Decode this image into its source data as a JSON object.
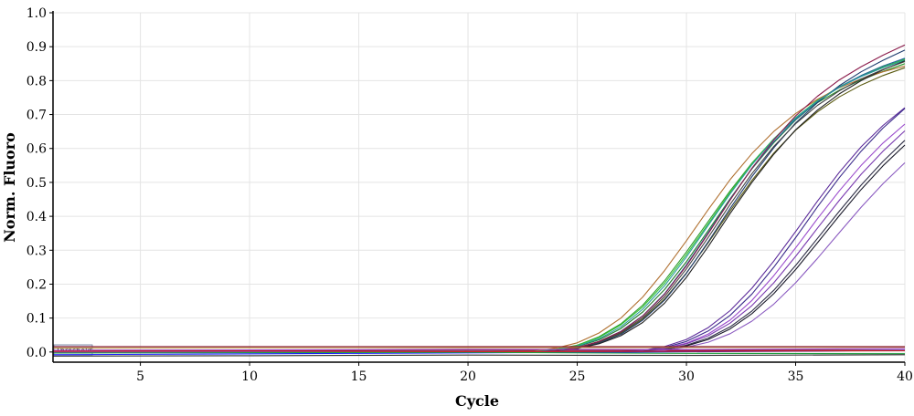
{
  "chart_data": {
    "type": "line",
    "xlabel": "Cycle",
    "ylabel": "Norm. Fluoro",
    "xlim": [
      1,
      40
    ],
    "ylim": [
      -0.03,
      1.0
    ],
    "x_ticks": [
      5,
      10,
      15,
      20,
      25,
      30,
      35,
      40
    ],
    "y_ticks": [
      0.0,
      0.1,
      0.2,
      0.3,
      0.4,
      0.5,
      0.6,
      0.7,
      0.8,
      0.9,
      1.0
    ],
    "y_tick_labels": [
      "0.0",
      "0.1",
      "0.2",
      "0.3",
      "0.4",
      "0.5",
      "0.6",
      "0.7",
      "0.8",
      "0.9",
      "1.0"
    ],
    "grid": true,
    "legend": "none",
    "threshold": {
      "label": "Threshold",
      "y": 0.005,
      "color": "#7a1a3a"
    },
    "series": [
      {
        "color": "#2e9a2e",
        "x": [
          1,
          20,
          23,
          24,
          25,
          26,
          27,
          28,
          29,
          30,
          31,
          32,
          33,
          34,
          35,
          36,
          37,
          38,
          39,
          40
        ],
        "values": [
          0,
          0,
          0.001,
          0.008,
          0.02,
          0.045,
          0.083,
          0.138,
          0.21,
          0.295,
          0.385,
          0.475,
          0.557,
          0.628,
          0.688,
          0.735,
          0.772,
          0.802,
          0.827,
          0.85
        ]
      },
      {
        "color": "#1f7a2a",
        "x": [
          1,
          20,
          23,
          24,
          25,
          26,
          27,
          28,
          29,
          30,
          31,
          32,
          33,
          34,
          35,
          36,
          37,
          38,
          39,
          40
        ],
        "values": [
          0,
          0,
          0,
          0.005,
          0.016,
          0.036,
          0.069,
          0.118,
          0.184,
          0.266,
          0.358,
          0.452,
          0.54,
          0.617,
          0.684,
          0.738,
          0.781,
          0.815,
          0.843,
          0.865
        ]
      },
      {
        "color": "#35c335",
        "x": [
          1,
          20,
          23,
          24,
          25,
          26,
          27,
          28,
          29,
          30,
          31,
          32,
          33,
          34,
          35,
          36,
          37,
          38,
          39,
          40
        ],
        "values": [
          0,
          0,
          0.001,
          0.007,
          0.019,
          0.043,
          0.08,
          0.133,
          0.203,
          0.287,
          0.378,
          0.47,
          0.555,
          0.628,
          0.691,
          0.742,
          0.782,
          0.814,
          0.84,
          0.862
        ]
      },
      {
        "color": "#5a5a10",
        "x": [
          1,
          20,
          23,
          24,
          25,
          26,
          27,
          28,
          29,
          30,
          31,
          32,
          33,
          34,
          35,
          36,
          37,
          38,
          39,
          40
        ],
        "values": [
          0,
          0,
          0,
          0.004,
          0.012,
          0.028,
          0.055,
          0.097,
          0.156,
          0.233,
          0.322,
          0.416,
          0.506,
          0.586,
          0.654,
          0.708,
          0.752,
          0.787,
          0.815,
          0.838
        ]
      },
      {
        "color": "#b07030",
        "x": [
          1,
          20,
          23,
          24,
          25,
          26,
          27,
          28,
          29,
          30,
          31,
          32,
          33,
          34,
          35,
          36,
          37,
          38,
          39,
          40
        ],
        "values": [
          0,
          0,
          0.002,
          0.011,
          0.027,
          0.056,
          0.1,
          0.162,
          0.24,
          0.328,
          0.42,
          0.508,
          0.585,
          0.65,
          0.703,
          0.745,
          0.779,
          0.805,
          0.826,
          0.843
        ]
      },
      {
        "color": "#1e3c6e",
        "x": [
          1,
          20,
          23,
          24,
          25,
          26,
          27,
          28,
          29,
          30,
          31,
          32,
          33,
          34,
          35,
          36,
          37,
          38,
          39,
          40
        ],
        "values": [
          0,
          0,
          0,
          0.003,
          0.011,
          0.026,
          0.052,
          0.094,
          0.153,
          0.232,
          0.325,
          0.423,
          0.517,
          0.602,
          0.675,
          0.735,
          0.785,
          0.826,
          0.86,
          0.89
        ]
      },
      {
        "color": "#2a6aa0",
        "x": [
          1,
          20,
          23,
          24,
          25,
          26,
          27,
          28,
          29,
          30,
          31,
          32,
          33,
          34,
          35,
          36,
          37,
          38,
          39,
          40
        ],
        "values": [
          0,
          0,
          0,
          0.004,
          0.013,
          0.031,
          0.061,
          0.107,
          0.172,
          0.257,
          0.352,
          0.45,
          0.541,
          0.62,
          0.686,
          0.739,
          0.781,
          0.815,
          0.843,
          0.866
        ]
      },
      {
        "color": "#2a9aa0",
        "x": [
          1,
          20,
          23,
          24,
          25,
          26,
          27,
          28,
          29,
          30,
          31,
          32,
          33,
          34,
          35,
          36,
          37,
          38,
          39,
          40
        ],
        "values": [
          0,
          0,
          0.001,
          0.006,
          0.017,
          0.039,
          0.074,
          0.126,
          0.195,
          0.28,
          0.373,
          0.466,
          0.552,
          0.627,
          0.69,
          0.74,
          0.78,
          0.812,
          0.838,
          0.86
        ]
      },
      {
        "color": "#222222",
        "x": [
          1,
          20,
          23,
          24,
          25,
          26,
          27,
          28,
          29,
          30,
          31,
          32,
          33,
          34,
          35,
          36,
          37,
          38,
          39,
          40
        ],
        "values": [
          0,
          0,
          0,
          0.003,
          0.01,
          0.024,
          0.048,
          0.087,
          0.144,
          0.22,
          0.311,
          0.408,
          0.5,
          0.583,
          0.655,
          0.713,
          0.761,
          0.8,
          0.832,
          0.858
        ]
      },
      {
        "color": "#444444",
        "x": [
          1,
          20,
          23,
          24,
          25,
          26,
          27,
          28,
          29,
          30,
          31,
          32,
          33,
          34,
          35,
          36,
          37,
          38,
          39,
          40
        ],
        "values": [
          0,
          0,
          0,
          0.004,
          0.012,
          0.029,
          0.057,
          0.101,
          0.163,
          0.245,
          0.338,
          0.435,
          0.526,
          0.606,
          0.673,
          0.727,
          0.77,
          0.805,
          0.833,
          0.856
        ]
      },
      {
        "color": "#8a1a4a",
        "x": [
          1,
          20,
          23,
          24,
          25,
          26,
          27,
          28,
          29,
          30,
          31,
          32,
          33,
          34,
          35,
          36,
          37,
          38,
          39,
          40
        ],
        "values": [
          0,
          0,
          0,
          0.004,
          0.013,
          0.031,
          0.06,
          0.106,
          0.17,
          0.254,
          0.349,
          0.448,
          0.542,
          0.625,
          0.696,
          0.754,
          0.802,
          0.841,
          0.875,
          0.905
        ]
      },
      {
        "color": "#5b2a9a",
        "x": [
          1,
          27,
          28,
          29,
          30,
          31,
          32,
          33,
          34,
          35,
          36,
          37,
          38,
          39,
          40
        ],
        "values": [
          0,
          0.001,
          0.005,
          0.016,
          0.037,
          0.072,
          0.122,
          0.188,
          0.268,
          0.355,
          0.445,
          0.53,
          0.605,
          0.668,
          0.72
        ]
      },
      {
        "color": "#3a2a8a",
        "x": [
          1,
          27,
          28,
          29,
          30,
          31,
          32,
          33,
          34,
          35,
          36,
          37,
          38,
          39,
          40
        ],
        "values": [
          0,
          0,
          0.004,
          0.013,
          0.031,
          0.062,
          0.108,
          0.171,
          0.25,
          0.337,
          0.428,
          0.514,
          0.592,
          0.66,
          0.718
        ]
      },
      {
        "color": "#9a4acc",
        "x": [
          1,
          27,
          28,
          29,
          30,
          31,
          32,
          33,
          34,
          35,
          36,
          37,
          38,
          39,
          40
        ],
        "values": [
          0,
          0,
          0.003,
          0.011,
          0.026,
          0.053,
          0.094,
          0.152,
          0.225,
          0.307,
          0.393,
          0.475,
          0.55,
          0.616,
          0.672
        ]
      },
      {
        "color": "#7a3ab0",
        "x": [
          1,
          27,
          28,
          29,
          30,
          31,
          32,
          33,
          34,
          35,
          36,
          37,
          38,
          39,
          40
        ],
        "values": [
          0,
          0,
          0.003,
          0.01,
          0.024,
          0.048,
          0.085,
          0.137,
          0.204,
          0.282,
          0.365,
          0.447,
          0.524,
          0.592,
          0.652
        ]
      },
      {
        "color": "#1a1a2a",
        "x": [
          1,
          27,
          28,
          29,
          30,
          31,
          32,
          33,
          34,
          35,
          36,
          37,
          38,
          39,
          40
        ],
        "values": [
          0,
          0,
          0.002,
          0.007,
          0.018,
          0.037,
          0.068,
          0.113,
          0.172,
          0.243,
          0.322,
          0.402,
          0.479,
          0.549,
          0.61
        ]
      },
      {
        "color": "#303048",
        "x": [
          1,
          27,
          28,
          29,
          30,
          31,
          32,
          33,
          34,
          35,
          36,
          37,
          38,
          39,
          40
        ],
        "values": [
          0,
          0,
          0.002,
          0.008,
          0.02,
          0.041,
          0.074,
          0.121,
          0.182,
          0.255,
          0.335,
          0.415,
          0.492,
          0.562,
          0.624
        ]
      },
      {
        "color": "#8a5ac0",
        "x": [
          1,
          27,
          28,
          29,
          30,
          31,
          32,
          33,
          34,
          35,
          36,
          37,
          38,
          39,
          40
        ],
        "values": [
          0,
          0,
          0.001,
          0.005,
          0.014,
          0.029,
          0.054,
          0.091,
          0.141,
          0.204,
          0.276,
          0.352,
          0.427,
          0.496,
          0.558
        ]
      },
      {
        "color": "#b58a3a",
        "x": [
          1,
          40
        ],
        "values": [
          0.012,
          0.014
        ]
      },
      {
        "color": "#8a1a3a",
        "x": [
          1,
          40
        ],
        "values": [
          0.016,
          0.016
        ]
      },
      {
        "color": "#1a1aff",
        "x": [
          1,
          8,
          15,
          22,
          28,
          34,
          40
        ],
        "values": [
          -0.008,
          -0.006,
          -0.004,
          -0.002,
          0.0,
          0.002,
          0.005
        ]
      },
      {
        "color": "#a040c0",
        "x": [
          1,
          10,
          20,
          30,
          40
        ],
        "values": [
          0.005,
          0.006,
          0.008,
          0.007,
          0.01
        ]
      },
      {
        "color": "#20a040",
        "x": [
          1,
          10,
          20,
          30,
          40
        ],
        "values": [
          -0.003,
          -0.002,
          -0.001,
          -0.004,
          -0.005
        ]
      },
      {
        "color": "#d02020",
        "x": [
          1,
          10,
          20,
          30,
          40
        ],
        "values": [
          0.002,
          0.003,
          0.001,
          0.002,
          0.004
        ]
      },
      {
        "color": "#2a2a2a",
        "x": [
          1,
          10,
          20,
          30,
          40
        ],
        "values": [
          -0.012,
          -0.011,
          -0.009,
          -0.01,
          -0.008
        ]
      }
    ]
  }
}
